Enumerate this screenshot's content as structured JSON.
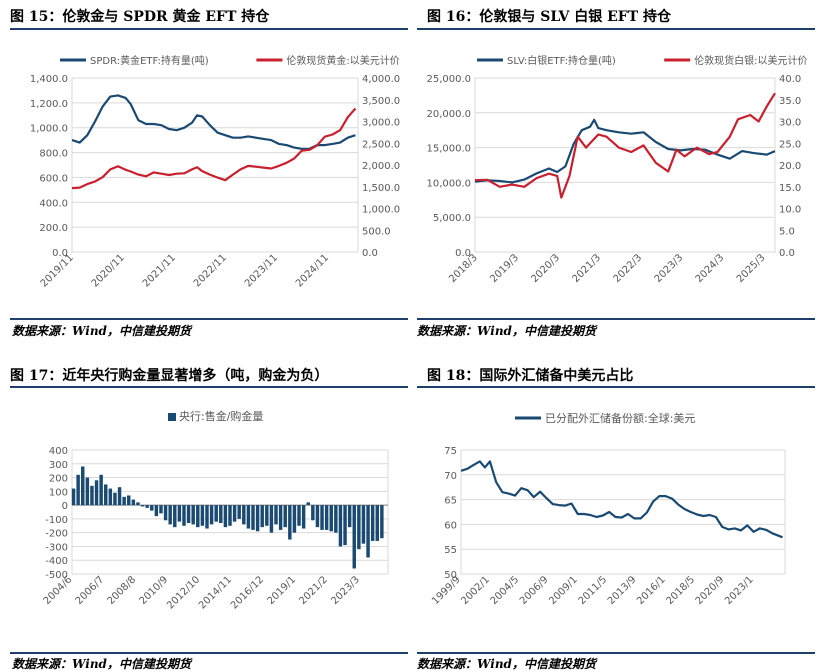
{
  "colors": {
    "navy": "#1a4a72",
    "red": "#c8202f",
    "rule": "#1f3f6d",
    "text": "#595959",
    "grid": "#d9d9d9"
  },
  "panels": [
    {
      "title": "图 15：伦敦金与 SPDR 黄金 EFT 持仓",
      "source": "数据来源：Wind，中信建投期货"
    },
    {
      "title": "图 16：伦敦银与 SLV 白银 EFT 持仓",
      "source": "数据来源：Wind，中信建投期货"
    },
    {
      "title": "图 17：近年央行购金量显著增多（吨，购金为负）",
      "source": "数据来源：Wind，中信建投期货"
    },
    {
      "title": "图 18：国际外汇储备中美元占比",
      "source": "数据来源：Wind，中信建投期货"
    }
  ],
  "chart_data": [
    {
      "type": "line",
      "title": "图 15：伦敦金与 SPDR 黄金 EFT 持仓",
      "x_ticks": [
        "2019/11",
        "2020/11",
        "2021/11",
        "2022/11",
        "2023/11",
        "2024/11"
      ],
      "x_range": [
        2019.8,
        2025.4
      ],
      "ylim_left": [
        0,
        1400
      ],
      "yticks_left": [
        "0.0",
        "200.0",
        "400.0",
        "600.0",
        "800.0",
        "1,000.0",
        "1,200.0",
        "1,400.0"
      ],
      "ylim_right": [
        0,
        4000
      ],
      "yticks_right": [
        "0.0",
        "500.0",
        "1,000.0",
        "1,500.0",
        "2,000.0",
        "2,500.0",
        "3,000.0",
        "3,500.0",
        "4,000.0"
      ],
      "legend": "top",
      "grid": true,
      "series": [
        {
          "name": "SPDR:黄金ETF:持有量(吨)",
          "axis": "left",
          "color": "#1a4a72",
          "x": [
            2019.8,
            2019.95,
            2020.1,
            2020.25,
            2020.4,
            2020.55,
            2020.7,
            2020.85,
            2020.95,
            2021.1,
            2021.25,
            2021.4,
            2021.55,
            2021.7,
            2021.85,
            2022.0,
            2022.15,
            2022.25,
            2022.35,
            2022.5,
            2022.65,
            2022.8,
            2022.95,
            2023.1,
            2023.25,
            2023.4,
            2023.55,
            2023.7,
            2023.85,
            2024.0,
            2024.15,
            2024.3,
            2024.45,
            2024.6,
            2024.75,
            2024.9,
            2025.05,
            2025.2,
            2025.35
          ],
          "values": [
            900,
            880,
            940,
            1050,
            1170,
            1250,
            1260,
            1240,
            1190,
            1060,
            1030,
            1030,
            1020,
            990,
            980,
            1000,
            1040,
            1100,
            1090,
            1020,
            960,
            940,
            920,
            920,
            930,
            920,
            910,
            900,
            870,
            860,
            840,
            830,
            830,
            860,
            860,
            870,
            880,
            920,
            940
          ]
        },
        {
          "name": "伦敦现货黄金:以美元计价",
          "axis": "right",
          "color": "#c8202f",
          "x": [
            2019.8,
            2019.95,
            2020.1,
            2020.25,
            2020.4,
            2020.55,
            2020.7,
            2020.85,
            2020.95,
            2021.1,
            2021.25,
            2021.4,
            2021.55,
            2021.7,
            2021.85,
            2022.0,
            2022.15,
            2022.25,
            2022.35,
            2022.5,
            2022.65,
            2022.8,
            2022.95,
            2023.1,
            2023.25,
            2023.4,
            2023.55,
            2023.7,
            2023.85,
            2024.0,
            2024.15,
            2024.3,
            2024.45,
            2024.6,
            2024.75,
            2024.9,
            2025.05,
            2025.2,
            2025.35
          ],
          "values": [
            1470,
            1480,
            1560,
            1620,
            1720,
            1900,
            1970,
            1890,
            1850,
            1780,
            1740,
            1830,
            1800,
            1770,
            1800,
            1810,
            1900,
            1950,
            1860,
            1780,
            1710,
            1650,
            1780,
            1900,
            1980,
            1960,
            1940,
            1920,
            1980,
            2050,
            2150,
            2330,
            2350,
            2450,
            2650,
            2700,
            2800,
            3100,
            3300
          ]
        }
      ]
    },
    {
      "type": "line",
      "title": "图 16：伦敦银与 SLV 白银 EFT 持仓",
      "x_ticks": [
        "2018/3",
        "2019/3",
        "2020/3",
        "2021/3",
        "2022/3",
        "2023/3",
        "2024/3",
        "2025/3"
      ],
      "x_range": [
        2018.1,
        2025.4
      ],
      "ylim_left": [
        0,
        25000
      ],
      "yticks_left": [
        "0.0",
        "5,000.0",
        "10,000.0",
        "15,000.0",
        "20,000.0",
        "25,000.0"
      ],
      "ylim_right": [
        0,
        40
      ],
      "yticks_right": [
        "0.0",
        "5.0",
        "10.0",
        "15.0",
        "20.0",
        "25.0",
        "30.0",
        "35.0",
        "40.0"
      ],
      "legend": "top",
      "grid": true,
      "series": [
        {
          "name": "SLV:白银ETF:持仓量(吨)",
          "axis": "left",
          "color": "#1a4a72",
          "x": [
            2018.1,
            2018.4,
            2018.7,
            2019.0,
            2019.3,
            2019.6,
            2019.9,
            2020.1,
            2020.3,
            2020.5,
            2020.7,
            2020.9,
            2021.0,
            2021.1,
            2021.3,
            2021.6,
            2021.9,
            2022.2,
            2022.5,
            2022.8,
            2023.1,
            2023.4,
            2023.7,
            2024.0,
            2024.3,
            2024.6,
            2024.9,
            2025.2,
            2025.4
          ],
          "values": [
            10100,
            10300,
            10200,
            10000,
            10400,
            11300,
            12000,
            11500,
            12300,
            15500,
            17500,
            18000,
            19000,
            17800,
            17500,
            17200,
            17000,
            17200,
            15800,
            14800,
            14600,
            14800,
            14700,
            14000,
            13400,
            14500,
            14200,
            14000,
            14500
          ]
        },
        {
          "name": "伦敦现货白银:以美元计价",
          "axis": "right",
          "color": "#c8202f",
          "x": [
            2018.1,
            2018.4,
            2018.7,
            2019.0,
            2019.3,
            2019.6,
            2019.9,
            2020.1,
            2020.2,
            2020.4,
            2020.6,
            2020.8,
            2021.0,
            2021.1,
            2021.3,
            2021.6,
            2021.9,
            2022.2,
            2022.5,
            2022.8,
            2023.0,
            2023.2,
            2023.5,
            2023.8,
            2024.0,
            2024.3,
            2024.5,
            2024.8,
            2025.0,
            2025.2,
            2025.4
          ],
          "values": [
            16.5,
            16.6,
            15.0,
            15.5,
            15.0,
            17.0,
            18.0,
            17.5,
            12.5,
            17.5,
            26.5,
            24.0,
            26.0,
            27.0,
            26.5,
            24.0,
            23.0,
            24.5,
            20.5,
            18.5,
            23.5,
            22.0,
            24.0,
            22.5,
            23.0,
            26.5,
            30.5,
            31.5,
            30.0,
            33.5,
            36.5
          ]
        }
      ]
    },
    {
      "type": "bar",
      "title": "图 17：近年央行购金量显著增多（吨，购金为负）",
      "x_ticks": [
        "2004/6",
        "2006/7",
        "2008/8",
        "2010/9",
        "2012/10",
        "2014/11",
        "2016/12",
        "2019/1",
        "2021/2",
        "2023/3"
      ],
      "x_range": [
        2004.4,
        2025.0
      ],
      "ylim": [
        -500,
        400
      ],
      "yticks": [
        "-500",
        "-400",
        "-300",
        "-200",
        "-100",
        "0",
        "100",
        "200",
        "300",
        "400"
      ],
      "legend": "top",
      "grid": true,
      "series": [
        {
          "name": "央行:售金/购金量",
          "color": "#1a4a72",
          "x": [
            2004.5,
            2004.8,
            2005.1,
            2005.4,
            2005.7,
            2006.0,
            2006.3,
            2006.6,
            2006.9,
            2007.2,
            2007.5,
            2007.8,
            2008.1,
            2008.4,
            2008.7,
            2009.0,
            2009.3,
            2009.6,
            2009.9,
            2010.2,
            2010.5,
            2010.8,
            2011.1,
            2011.4,
            2011.7,
            2012.0,
            2012.3,
            2012.6,
            2012.9,
            2013.2,
            2013.5,
            2013.8,
            2014.1,
            2014.4,
            2014.7,
            2015.0,
            2015.3,
            2015.6,
            2015.9,
            2016.2,
            2016.5,
            2016.8,
            2017.1,
            2017.4,
            2017.7,
            2018.0,
            2018.3,
            2018.6,
            2018.9,
            2019.2,
            2019.5,
            2019.8,
            2020.1,
            2020.4,
            2020.7,
            2021.0,
            2021.3,
            2021.6,
            2021.9,
            2022.2,
            2022.5,
            2022.8,
            2023.1,
            2023.4,
            2023.7,
            2024.0,
            2024.3,
            2024.6
          ],
          "values": [
            120,
            220,
            280,
            200,
            140,
            180,
            220,
            150,
            120,
            90,
            130,
            60,
            70,
            40,
            20,
            -10,
            -20,
            -40,
            -80,
            -60,
            -110,
            -140,
            -160,
            -120,
            -150,
            -130,
            -140,
            -160,
            -150,
            -170,
            -140,
            -120,
            -130,
            -160,
            -150,
            -120,
            -100,
            -140,
            -170,
            -180,
            -190,
            -160,
            -150,
            -200,
            -140,
            -180,
            -160,
            -250,
            -200,
            -150,
            -170,
            20,
            -110,
            -160,
            -180,
            -180,
            -190,
            -200,
            -300,
            -290,
            -160,
            -460,
            -320,
            -280,
            -380,
            -260,
            -260,
            -240
          ]
        }
      ]
    },
    {
      "type": "line",
      "title": "图 18：国际外汇储备中美元占比",
      "x_ticks": [
        "1999/9",
        "2002/1",
        "2004/5",
        "2006/9",
        "2009/1",
        "2011/5",
        "2013/9",
        "2016/1",
        "2018/5",
        "2020/9",
        "2023/1"
      ],
      "x_range": [
        1999.7,
        2025.5
      ],
      "ylim": [
        50,
        75
      ],
      "yticks": [
        "50",
        "55",
        "60",
        "65",
        "70",
        "75"
      ],
      "legend": "top",
      "grid": true,
      "series": [
        {
          "name": "已分配外汇储备份额:全球:美元",
          "color": "#1a4a72",
          "x": [
            1999.7,
            2000.2,
            2000.7,
            2001.2,
            2001.6,
            2002.0,
            2002.5,
            2003.0,
            2003.5,
            2004.0,
            2004.5,
            2005.0,
            2005.5,
            2006.0,
            2006.5,
            2007.0,
            2007.5,
            2008.0,
            2008.5,
            2009.0,
            2009.5,
            2010.0,
            2010.5,
            2011.0,
            2011.5,
            2012.0,
            2012.5,
            2013.0,
            2013.5,
            2014.0,
            2014.5,
            2015.0,
            2015.5,
            2016.0,
            2016.5,
            2017.0,
            2017.5,
            2018.0,
            2018.5,
            2019.0,
            2019.5,
            2020.0,
            2020.5,
            2021.0,
            2021.5,
            2022.0,
            2022.5,
            2023.0,
            2023.5,
            2024.0,
            2024.5,
            2025.0,
            2025.3
          ],
          "values": [
            70.8,
            71.2,
            72.0,
            72.7,
            71.5,
            72.7,
            68.5,
            66.5,
            66.2,
            65.8,
            67.3,
            66.9,
            65.5,
            66.6,
            65.3,
            64.1,
            63.9,
            63.8,
            64.2,
            62.1,
            62.1,
            61.9,
            61.5,
            61.8,
            62.5,
            61.5,
            61.4,
            62.1,
            61.2,
            61.2,
            62.4,
            64.6,
            65.7,
            65.7,
            65.2,
            64.0,
            63.1,
            62.5,
            62.0,
            61.7,
            61.9,
            61.5,
            59.5,
            59.0,
            59.2,
            58.8,
            59.8,
            58.5,
            59.2,
            58.9,
            58.2,
            57.7,
            57.4
          ]
        }
      ]
    }
  ]
}
